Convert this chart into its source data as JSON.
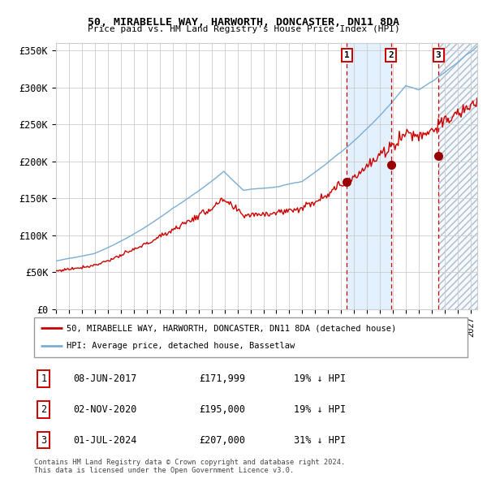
{
  "title": "50, MIRABELLE WAY, HARWORTH, DONCASTER, DN11 8DA",
  "subtitle": "Price paid vs. HM Land Registry's House Price Index (HPI)",
  "legend_red": "50, MIRABELLE WAY, HARWORTH, DONCASTER, DN11 8DA (detached house)",
  "legend_blue": "HPI: Average price, detached house, Bassetlaw",
  "footnote1": "Contains HM Land Registry data © Crown copyright and database right 2024.",
  "footnote2": "This data is licensed under the Open Government Licence v3.0.",
  "transactions": [
    {
      "num": 1,
      "date": "08-JUN-2017",
      "price": 171999,
      "pct": "19%",
      "dir": "↓"
    },
    {
      "num": 2,
      "date": "02-NOV-2020",
      "price": 195000,
      "pct": "19%",
      "dir": "↓"
    },
    {
      "num": 3,
      "date": "01-JUL-2024",
      "price": 207000,
      "pct": "31%",
      "dir": "↓"
    }
  ],
  "transaction_dates_decimal": [
    2017.44,
    2020.84,
    2024.5
  ],
  "sale_prices": [
    171999,
    195000,
    207000
  ],
  "ylim": [
    0,
    360000
  ],
  "yticks": [
    0,
    50000,
    100000,
    150000,
    200000,
    250000,
    300000,
    350000
  ],
  "ytick_labels": [
    "£0",
    "£50K",
    "£100K",
    "£150K",
    "£200K",
    "£250K",
    "£300K",
    "£350K"
  ],
  "xlim_start": 1995.0,
  "xlim_end": 2027.5,
  "bg_color": "#ffffff",
  "grid_color": "#cccccc",
  "red_color": "#cc0000",
  "blue_color": "#7aadd4",
  "sale_dot_color": "#990000",
  "shade_color": "#ddeeff",
  "hatch_color": "#aabbcc"
}
